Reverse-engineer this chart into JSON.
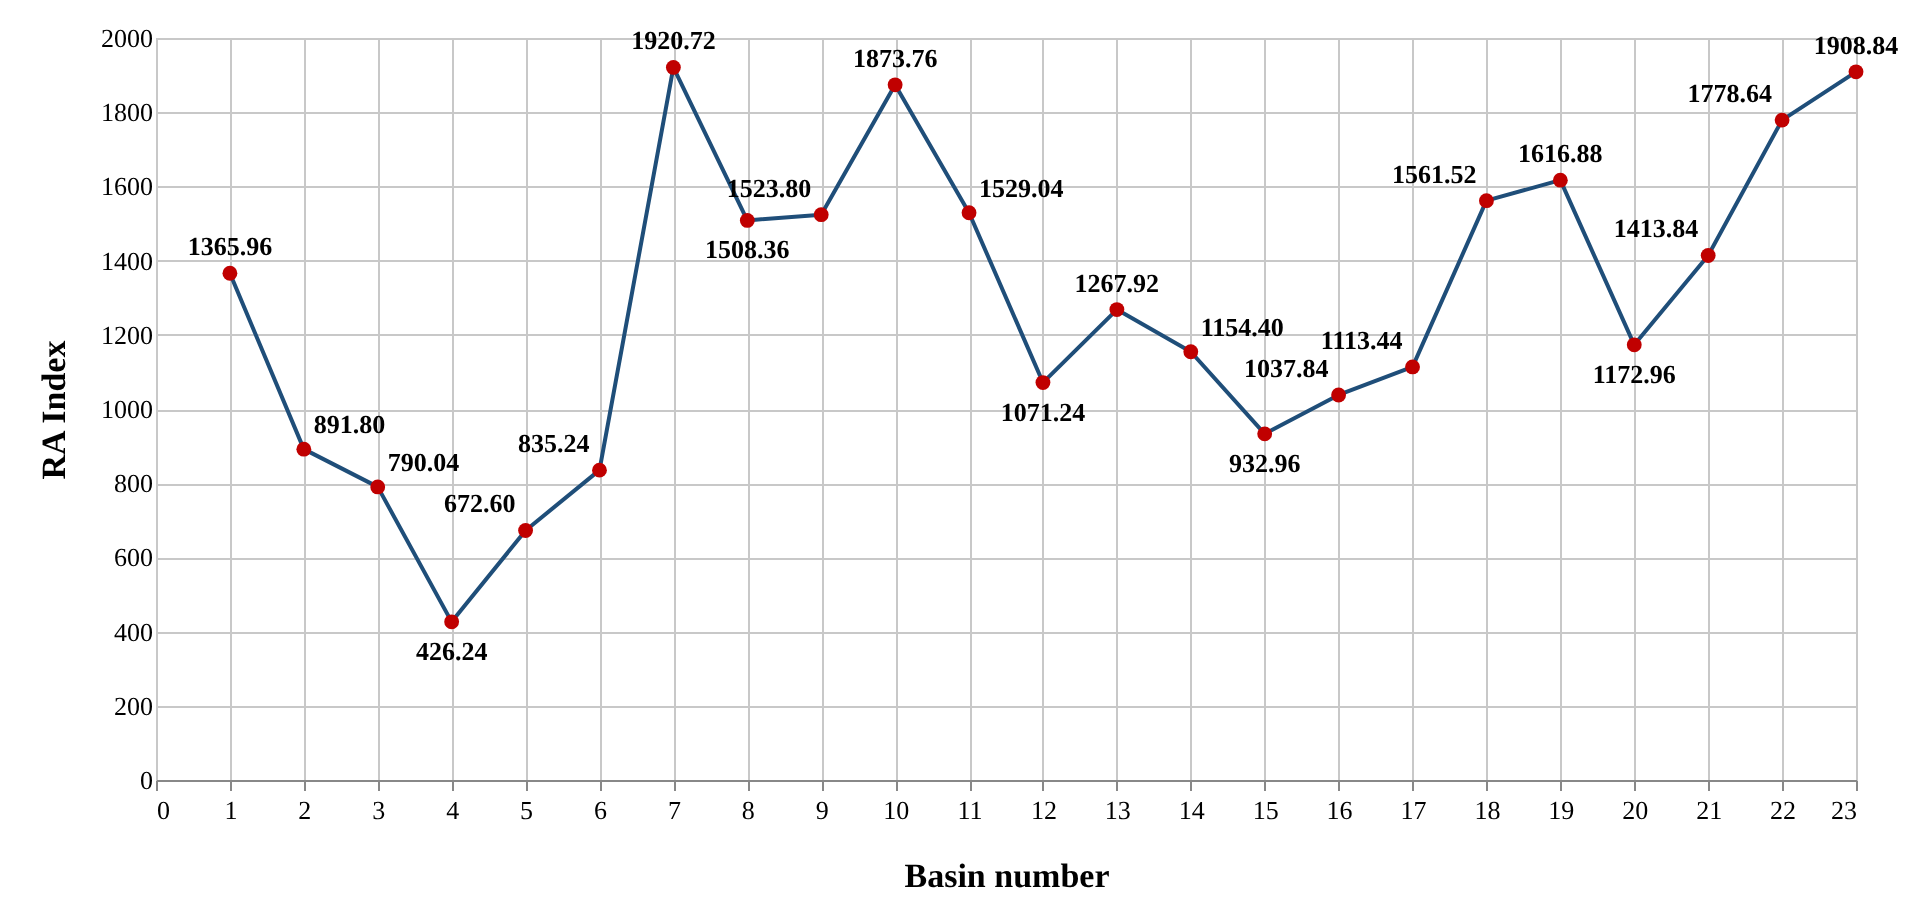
{
  "chart_data": {
    "type": "line",
    "xlabel": "Basin number",
    "ylabel": "RA Index",
    "x": [
      1,
      2,
      3,
      4,
      5,
      6,
      7,
      8,
      9,
      10,
      11,
      12,
      13,
      14,
      15,
      16,
      17,
      18,
      19,
      20,
      21,
      22,
      23
    ],
    "series": [
      {
        "color": "#1f4e79",
        "values": [
          1365.96,
          891.8,
          790.04,
          426.24,
          672.6,
          835.24,
          1920.72,
          1508.36,
          1523.8,
          1873.76,
          1529.04,
          1071.24,
          1267.92,
          1154.4,
          932.96,
          1037.84,
          1113.44,
          1561.52,
          1616.88,
          1172.96,
          1413.84,
          1778.64,
          1908.84
        ],
        "value_labels": [
          "1365.96",
          "891.80",
          "790.04",
          "426.24",
          "672.60",
          "835.24",
          "1920.72",
          "1508.36",
          "1523.80",
          "1873.76",
          "1529.04",
          "1071.24",
          "1267.92",
          "1154.40",
          "932.96",
          "1037.84",
          "1113.44",
          "1561.52",
          "1616.88",
          "1172.96",
          "1413.84",
          "1778.64",
          "1908.84"
        ],
        "colors": [
          "#c00000",
          "#c00000",
          "#c00000",
          "#c00000",
          "#c00000",
          "#c00000",
          "#c00000",
          "#c00000",
          "#c00000",
          "#c00000",
          "#c00000",
          "#c00000",
          "#c00000",
          "#c00000",
          "#c00000",
          "#c00000",
          "#c00000",
          "#c00000",
          "#c00000",
          "#c00000",
          "#c00000",
          "#c00000",
          "#c00000"
        ]
      }
    ],
    "marker": "circle",
    "xlim": [
      0,
      23
    ],
    "xticks": [
      0,
      1,
      2,
      3,
      4,
      5,
      6,
      7,
      8,
      9,
      10,
      11,
      12,
      13,
      14,
      15,
      16,
      17,
      18,
      19,
      20,
      21,
      22,
      23
    ],
    "ylim": [
      0,
      2000
    ],
    "yticks": [
      0,
      200,
      400,
      600,
      800,
      1000,
      1200,
      1400,
      1600,
      1800,
      2000
    ],
    "grid": true
  }
}
